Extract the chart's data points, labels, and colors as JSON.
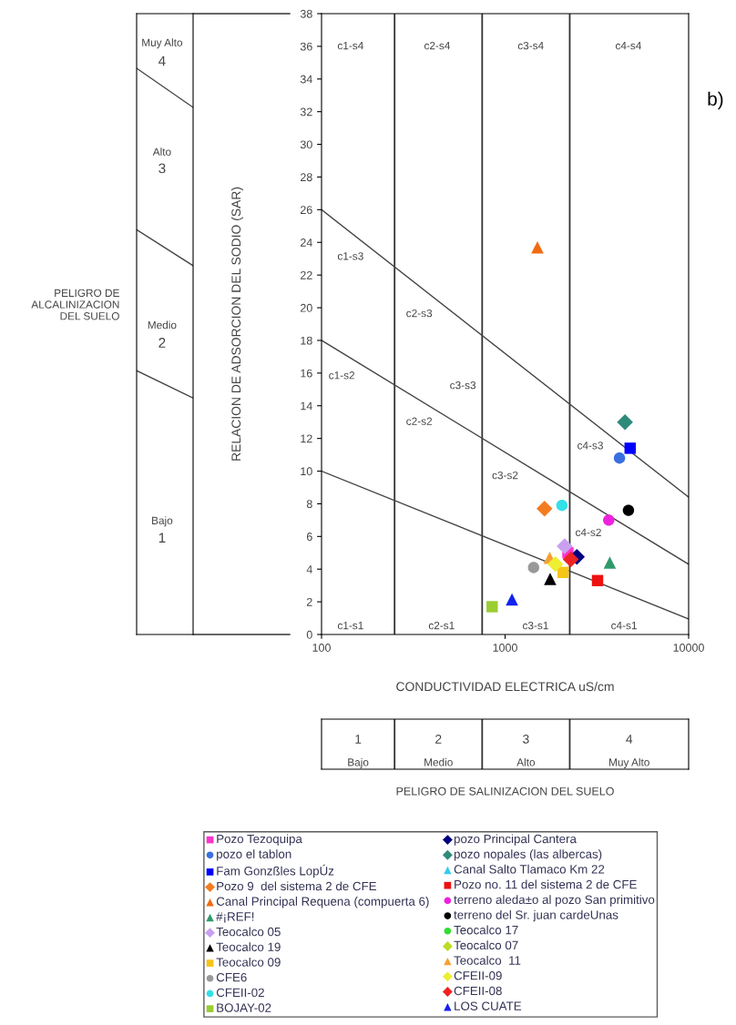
{
  "chart_data": [
    {
      "type": "scatter",
      "xlabel": "CONDUCTIVIDAD ELECTRICA uS/cm",
      "ylabel": "RELACION DE ADSORCION DEL SODIO (SAR)",
      "log": "x",
      "xlim": [
        100,
        10000
      ],
      "xticks": [
        100,
        1000,
        10000
      ],
      "ylim": [
        0,
        38
      ],
      "yticks": [
        0,
        2,
        4,
        6,
        8,
        10,
        12,
        14,
        16,
        18,
        20,
        22,
        24,
        26,
        28,
        30,
        32,
        34,
        36,
        38
      ],
      "legend": "bottom",
      "ref_lines": [
        {
          "axis": "x",
          "value": 250,
          "color": "#333333"
        },
        {
          "axis": "x",
          "value": 750,
          "color": "#333333"
        },
        {
          "axis": "x",
          "value": 2250,
          "color": "#333333"
        }
      ],
      "annotations": [
        "b)",
        "c1-s4",
        "c2-s4",
        "c3-s4",
        "c4-s4",
        "c1-s3",
        "c2-s3",
        "c3-s3",
        "c4-s3",
        "c1-s2",
        "c2-s2",
        "c3-s2",
        "c4-s2",
        "c1-s1",
        "c2-s1",
        "c3-s1",
        "c4-s1"
      ],
      "series": [
        {
          "type": "line",
          "color": "#444444",
          "x": [
            100,
            10000
          ],
          "values": [
            26,
            8.4
          ]
        },
        {
          "type": "line",
          "color": "#444444",
          "x": [
            100,
            10000
          ],
          "values": [
            18,
            4.3
          ]
        },
        {
          "type": "line",
          "color": "#444444",
          "x": [
            100,
            10000
          ],
          "values": [
            10,
            0.95
          ]
        },
        {
          "name": "Pozo Tezoquipa",
          "marker": "square",
          "color": "#ff33cc",
          "x": [
            2200
          ],
          "values": [
            5.0
          ]
        },
        {
          "name": "pozo el tablon",
          "marker": "circle",
          "color": "#3a6fe0",
          "x": [
            4200
          ],
          "values": [
            10.8
          ]
        },
        {
          "name": "Fam Gonzßles LopÚz",
          "marker": "square",
          "color": "#0000ff",
          "x": [
            4800
          ],
          "values": [
            11.4
          ]
        },
        {
          "name": "Pozo 9  del sistema 2 de CFE",
          "marker": "diamond",
          "color": "#f47c20",
          "x": [
            1640
          ],
          "values": [
            7.7
          ]
        },
        {
          "name": "Canal Principal Requena (compuerta 6)",
          "marker": "triangle",
          "color": "#f26a10",
          "x": [
            1500
          ],
          "values": [
            23.7
          ]
        },
        {
          "name": "#¡REF!",
          "marker": "triangle",
          "color": "#2e9a6a",
          "x": [
            3720
          ],
          "values": [
            4.4
          ]
        },
        {
          "name": "Teocalco 05",
          "marker": "diamond",
          "color": "#c9a0f0",
          "x": [
            2110
          ],
          "values": [
            5.4
          ]
        },
        {
          "name": "Teocalco 19",
          "marker": "triangle",
          "color": "#000000",
          "x": [
            1760
          ],
          "values": [
            3.4
          ]
        },
        {
          "name": "Teocalco 09",
          "marker": "square",
          "color": "#f5c518",
          "x": [
            2070
          ],
          "values": [
            3.8
          ]
        },
        {
          "name": "CFE6",
          "marker": "circle",
          "color": "#999999",
          "x": [
            1430
          ],
          "values": [
            4.1
          ]
        },
        {
          "name": "CFEII-02",
          "marker": "circle",
          "color": "#33e0e8",
          "x": [
            2040
          ],
          "values": [
            7.9
          ]
        },
        {
          "name": "BOJAY-02",
          "marker": "square",
          "color": "#9acd32",
          "x": [
            850
          ],
          "values": [
            1.7
          ]
        },
        {
          "name": "pozo Principal Cantera",
          "marker": "diamond",
          "color": "#000080",
          "x": [
            2460
          ],
          "values": [
            4.75
          ]
        },
        {
          "name": "pozo nopales (las albercas)",
          "marker": "diamond",
          "color": "#2e8b7a",
          "x": [
            4500
          ],
          "values": [
            13.0
          ]
        },
        {
          "name": "Canal Salto Tlamaco Km 22",
          "marker": "triangle",
          "color": "#33ccee",
          "x": [
            null
          ],
          "values": [
            null
          ]
        },
        {
          "name": "Pozo no. 11 del sistema 2 de CFE",
          "marker": "square",
          "color": "#ee1111",
          "x": [
            3190
          ],
          "values": [
            3.3
          ]
        },
        {
          "name": "terreno aleda±o al pozo San primitivo",
          "marker": "circle",
          "color": "#ee22dd",
          "x": [
            3670
          ],
          "values": [
            7.0
          ]
        },
        {
          "name": "terreno del Sr. juan cardeUnas",
          "marker": "circle",
          "color": "#000000",
          "x": [
            4700
          ],
          "values": [
            7.6
          ]
        },
        {
          "name": "Teocalco 17",
          "marker": "circle",
          "color": "#33dd33",
          "x": [
            null
          ],
          "values": [
            null
          ]
        },
        {
          "name": "Teocalco 07",
          "marker": "diamond",
          "color": "#bbdd22",
          "x": [
            null
          ],
          "values": [
            null
          ]
        },
        {
          "name": "Teocalco  11",
          "marker": "triangle",
          "color": "#f5a030",
          "x": [
            1750
          ],
          "values": [
            4.7
          ]
        },
        {
          "name": "CFEII-09",
          "marker": "diamond",
          "color": "#eeee33",
          "x": [
            1880
          ],
          "values": [
            4.3
          ]
        },
        {
          "name": "CFEII-08",
          "marker": "diamond",
          "color": "#ee2222",
          "x": [
            2280
          ],
          "values": [
            4.6
          ]
        },
        {
          "name": "LOS CUATE",
          "marker": "triangle",
          "color": "#1122ee",
          "x": [
            1090
          ],
          "values": [
            2.15
          ]
        }
      ]
    },
    {
      "type": "other",
      "title": "PELIGRO DE\nALCALINIZACION\nDEL SUELO",
      "annotations": [
        "Muy Alto",
        "4",
        "Alto",
        "3",
        "Medio",
        "2",
        "Bajo",
        "1"
      ]
    },
    {
      "type": "other",
      "xlabel": "PELIGRO DE SALINIZACION DEL SUELO",
      "annotations": [
        "1",
        "Bajo",
        "2",
        "Medio",
        "3",
        "Alto",
        "4",
        "Muy Alto"
      ]
    }
  ]
}
